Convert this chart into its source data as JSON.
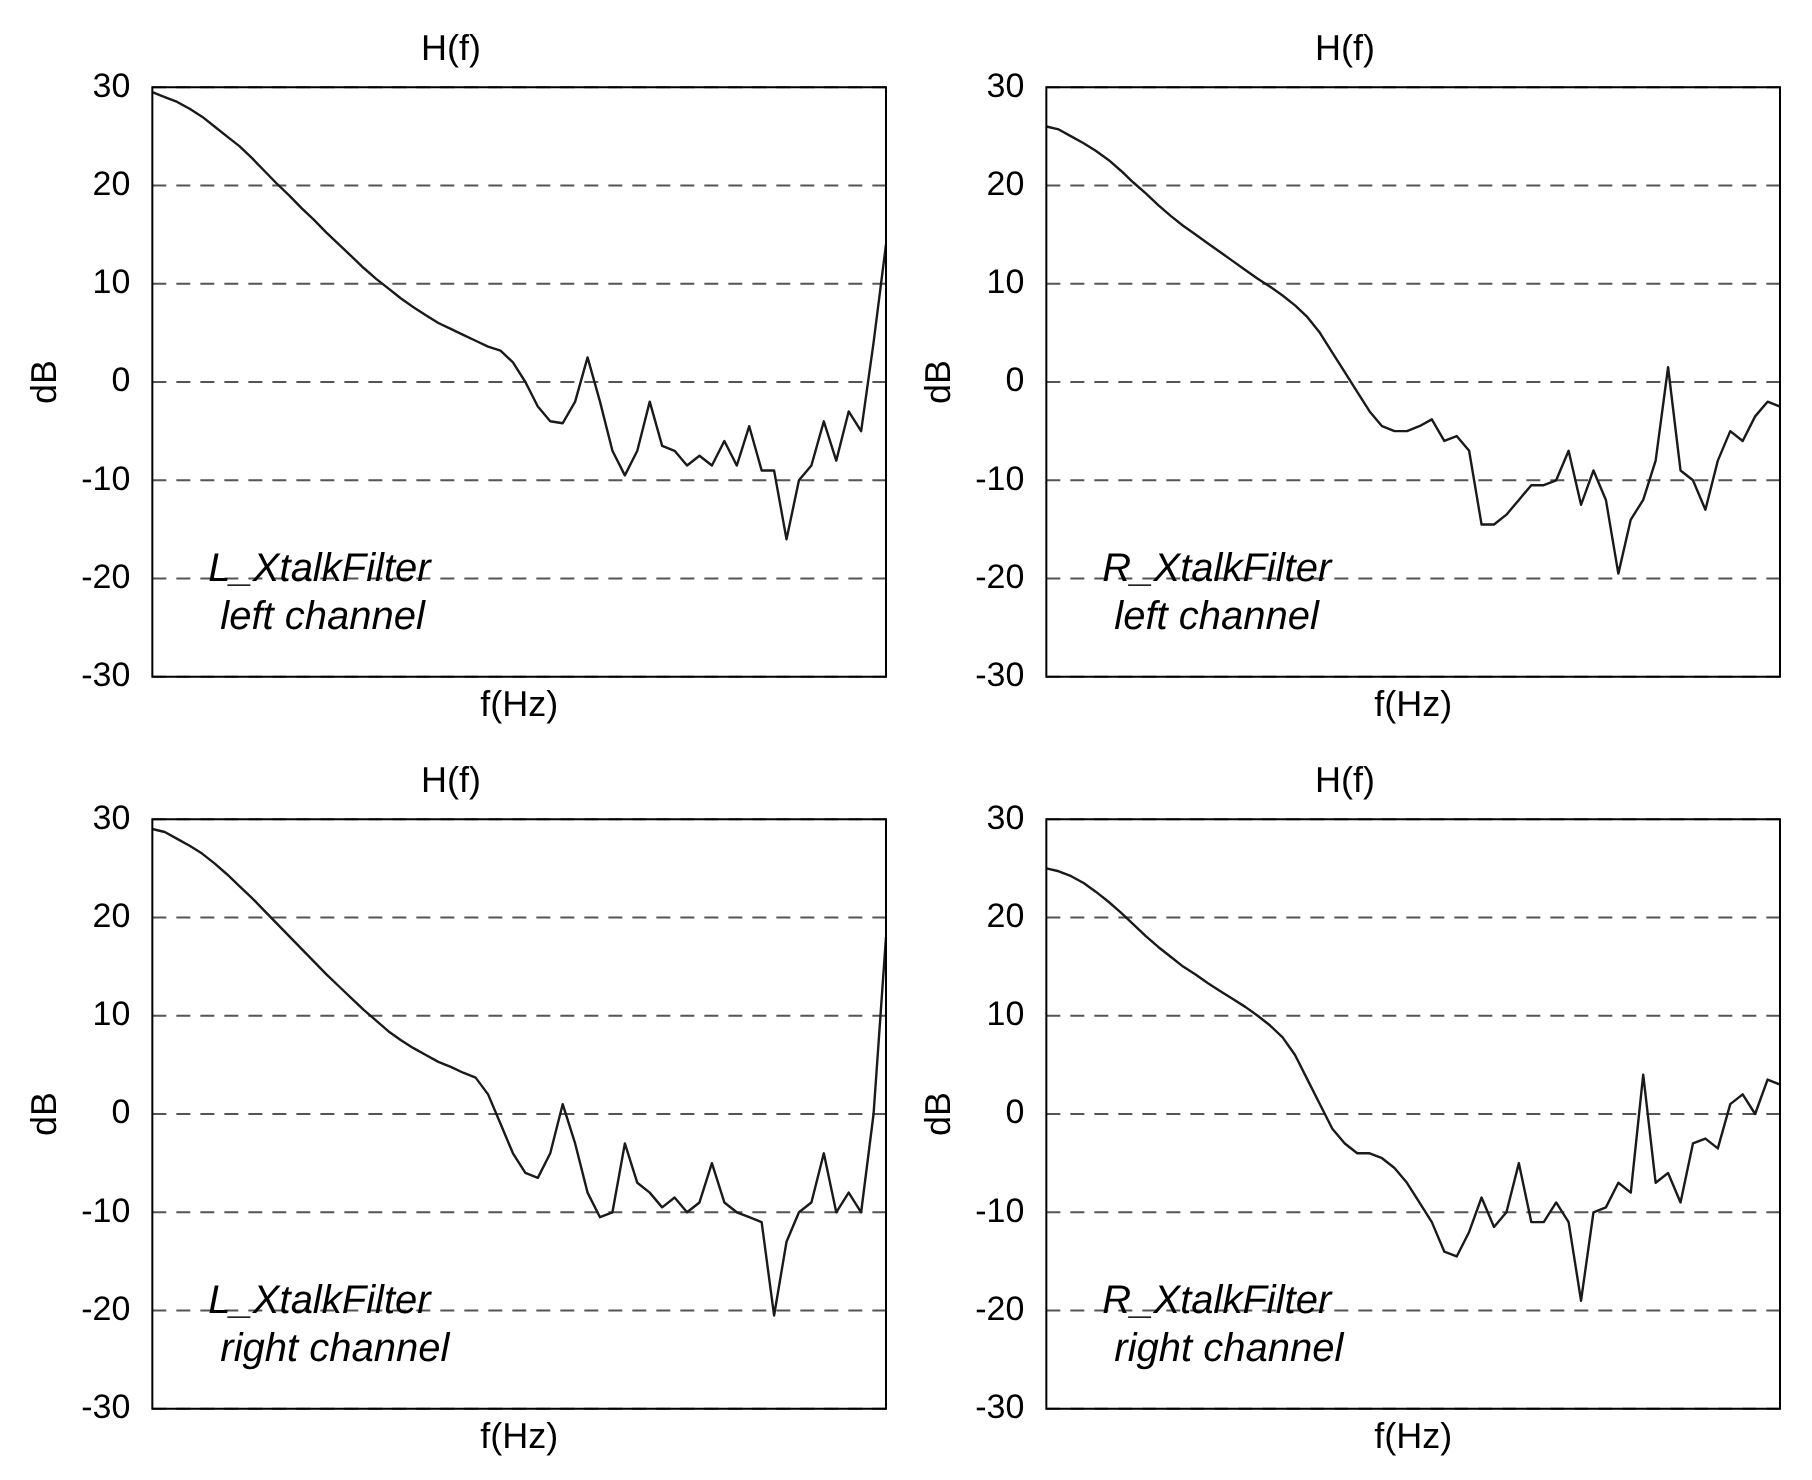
{
  "chart_data": [
    {
      "type": "line",
      "title": "H(f)",
      "xlabel": "f(Hz)",
      "ylabel": "dB",
      "categories": [
        null,
        null,
        null,
        null,
        null,
        null,
        null,
        null,
        null,
        null,
        null,
        null,
        null,
        null,
        null,
        null,
        null,
        null,
        null,
        null,
        null,
        null,
        null,
        null,
        null,
        null,
        null,
        null,
        null,
        null,
        null,
        null,
        null,
        null,
        null,
        null,
        null,
        null,
        null,
        null,
        null,
        null,
        null,
        null,
        null,
        null,
        null,
        null,
        null,
        null,
        null,
        null,
        null,
        null,
        null,
        null,
        null,
        null,
        null,
        null
      ],
      "series": [
        {
          "color": "#1a1a1a",
          "values": [
            29.5,
            29,
            28.5,
            27.8,
            27,
            26,
            25,
            24,
            22.8,
            21.5,
            20.2,
            19,
            17.7,
            16.5,
            15.2,
            14,
            12.8,
            11.6,
            10.5,
            9.5,
            8.5,
            7.6,
            6.8,
            6,
            5.4,
            4.8,
            4.2,
            3.6,
            3.2,
            2,
            0,
            -2.5,
            -4,
            -4.2,
            -2,
            2.5,
            -2,
            -7,
            -9.5,
            -7,
            -2,
            -6.5,
            -7,
            -8.5,
            -7.5,
            -8.5,
            -6,
            -8.5,
            -4.5,
            -9,
            -9,
            -16,
            -10,
            -8.5,
            -4,
            -8,
            -3,
            -5,
            4,
            14
          ]
        }
      ],
      "ylim": [
        -30,
        30
      ],
      "yticks": [
        -30,
        -20,
        -10,
        0,
        10,
        20,
        30
      ],
      "grid": "y",
      "tick_labels": "y",
      "legend": false,
      "marker": "none",
      "line_style": "solid",
      "annotations": [
        "L_XtalkFilter",
        "left channel"
      ]
    },
    {
      "type": "line",
      "title": "H(f)",
      "xlabel": "f(Hz)",
      "ylabel": "dB",
      "categories": [
        null,
        null,
        null,
        null,
        null,
        null,
        null,
        null,
        null,
        null,
        null,
        null,
        null,
        null,
        null,
        null,
        null,
        null,
        null,
        null,
        null,
        null,
        null,
        null,
        null,
        null,
        null,
        null,
        null,
        null,
        null,
        null,
        null,
        null,
        null,
        null,
        null,
        null,
        null,
        null,
        null,
        null,
        null,
        null,
        null,
        null,
        null,
        null,
        null,
        null,
        null,
        null,
        null,
        null,
        null,
        null,
        null,
        null,
        null,
        null
      ],
      "series": [
        {
          "color": "#1a1a1a",
          "values": [
            26,
            25.7,
            25,
            24.3,
            23.5,
            22.6,
            21.5,
            20.3,
            19.2,
            18,
            16.9,
            15.9,
            15,
            14.1,
            13.2,
            12.3,
            11.4,
            10.5,
            9.7,
            8.8,
            7.8,
            6.6,
            5,
            3,
            1,
            -1,
            -3,
            -4.5,
            -5,
            -5,
            -4.5,
            -3.8,
            -6,
            -5.5,
            -7,
            -14.5,
            -14.5,
            -13.5,
            -12,
            -10.5,
            -10.5,
            -10,
            -7,
            -12.5,
            -9,
            -12,
            -19.5,
            -14,
            -12,
            -8,
            1.5,
            -9,
            -10,
            -13,
            -8,
            -5,
            -6,
            -3.5,
            -2,
            -2.5
          ]
        }
      ],
      "ylim": [
        -30,
        30
      ],
      "yticks": [
        -30,
        -20,
        -10,
        0,
        10,
        20,
        30
      ],
      "grid": "y",
      "tick_labels": "y",
      "legend": false,
      "marker": "none",
      "line_style": "solid",
      "annotations": [
        "R_XtalkFilter",
        "left channel"
      ]
    },
    {
      "type": "line",
      "title": "H(f)",
      "xlabel": "f(Hz)",
      "ylabel": "dB",
      "categories": [
        null,
        null,
        null,
        null,
        null,
        null,
        null,
        null,
        null,
        null,
        null,
        null,
        null,
        null,
        null,
        null,
        null,
        null,
        null,
        null,
        null,
        null,
        null,
        null,
        null,
        null,
        null,
        null,
        null,
        null,
        null,
        null,
        null,
        null,
        null,
        null,
        null,
        null,
        null,
        null,
        null,
        null,
        null,
        null,
        null,
        null,
        null,
        null,
        null,
        null,
        null,
        null,
        null,
        null,
        null,
        null,
        null,
        null,
        null,
        null
      ],
      "series": [
        {
          "color": "#1a1a1a",
          "values": [
            29,
            28.7,
            28,
            27.3,
            26.5,
            25.5,
            24.4,
            23.2,
            22,
            20.7,
            19.4,
            18.1,
            16.8,
            15.5,
            14.2,
            13,
            11.8,
            10.6,
            9.5,
            8.4,
            7.5,
            6.7,
            6,
            5.3,
            4.8,
            4.2,
            3.7,
            2,
            -1,
            -4,
            -6,
            -6.5,
            -4,
            1,
            -3,
            -8,
            -10.5,
            -10,
            -3,
            -7,
            -8,
            -9.5,
            -8.5,
            -10,
            -9,
            -5,
            -9,
            -10,
            -10.5,
            -11,
            -20.5,
            -13,
            -10,
            -9,
            -4,
            -10,
            -8,
            -10,
            0,
            18
          ]
        }
      ],
      "ylim": [
        -30,
        30
      ],
      "yticks": [
        -30,
        -20,
        -10,
        0,
        10,
        20,
        30
      ],
      "grid": "y",
      "tick_labels": "y",
      "legend": false,
      "marker": "none",
      "line_style": "solid",
      "annotations": [
        "L_XtalkFilter",
        "right channel"
      ]
    },
    {
      "type": "line",
      "title": "H(f)",
      "xlabel": "f(Hz)",
      "ylabel": "dB",
      "categories": [
        null,
        null,
        null,
        null,
        null,
        null,
        null,
        null,
        null,
        null,
        null,
        null,
        null,
        null,
        null,
        null,
        null,
        null,
        null,
        null,
        null,
        null,
        null,
        null,
        null,
        null,
        null,
        null,
        null,
        null,
        null,
        null,
        null,
        null,
        null,
        null,
        null,
        null,
        null,
        null,
        null,
        null,
        null,
        null,
        null,
        null,
        null,
        null,
        null,
        null,
        null,
        null,
        null,
        null,
        null,
        null,
        null,
        null,
        null,
        null
      ],
      "series": [
        {
          "color": "#1a1a1a",
          "values": [
            25,
            24.7,
            24.2,
            23.5,
            22.6,
            21.6,
            20.5,
            19.3,
            18.1,
            17,
            16,
            15,
            14.2,
            13.3,
            12.5,
            11.7,
            10.9,
            10,
            9,
            7.8,
            6,
            3.5,
            1,
            -1.5,
            -3,
            -4,
            -4,
            -4.5,
            -5.5,
            -7,
            -9,
            -11,
            -14,
            -14.5,
            -12,
            -8.5,
            -11.5,
            -10,
            -5,
            -11,
            -11,
            -9,
            -11,
            -19,
            -10,
            -9.5,
            -7,
            -8,
            4,
            -7,
            -6,
            -9,
            -3,
            -2.5,
            -3.5,
            1,
            2,
            0,
            3.5,
            3
          ]
        }
      ],
      "ylim": [
        -30,
        30
      ],
      "yticks": [
        -30,
        -20,
        -10,
        0,
        10,
        20,
        30
      ],
      "grid": "y",
      "tick_labels": "y",
      "legend": false,
      "marker": "none",
      "line_style": "solid",
      "annotations": [
        "R_XtalkFilter",
        "right channel"
      ]
    }
  ]
}
